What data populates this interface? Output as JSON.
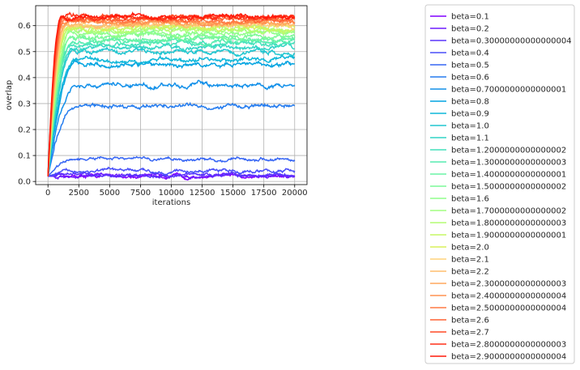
{
  "chart_data": {
    "type": "line",
    "xlabel": "iterations",
    "ylabel": "overlap",
    "xlim": [
      -1000,
      21000
    ],
    "ylim": [
      -0.012,
      0.677
    ],
    "xticks": [
      0,
      2500,
      5000,
      7500,
      10000,
      12500,
      15000,
      17500,
      20000
    ],
    "xtick_labels": [
      "0",
      "2500",
      "5000",
      "7500",
      "10000",
      "12500",
      "15000",
      "17500",
      "20000"
    ],
    "yticks": [
      0.0,
      0.1,
      0.2,
      0.3,
      0.4,
      0.5,
      0.6
    ],
    "ytick_labels": [
      "0.0",
      "0.1",
      "0.2",
      "0.3",
      "0.4",
      "0.5",
      "0.6"
    ],
    "grid": true,
    "legend_position": "right, outside plot",
    "x_range": [
      0,
      20000
    ],
    "initial_overlap": 0.02,
    "series": [
      {
        "name": "beta=0.1",
        "color": "#8000ff",
        "plateau": 0.02
      },
      {
        "name": "beta=0.2",
        "color": "#6e1bfe",
        "plateau": 0.022
      },
      {
        "name": "beta=0.30000000000000004",
        "color": "#5a35fc",
        "plateau": 0.025
      },
      {
        "name": "beta=0.4",
        "color": "#484ef9",
        "plateau": 0.04
      },
      {
        "name": "beta=0.5",
        "color": "#3766f4",
        "plateau": 0.085
      },
      {
        "name": "beta=0.6",
        "color": "#257cef",
        "plateau": 0.29
      },
      {
        "name": "beta=0.7000000000000001",
        "color": "#1390e9",
        "plateau": 0.37
      },
      {
        "name": "beta=0.8",
        "color": "#02a4e1",
        "plateau": 0.45
      },
      {
        "name": "beta=0.9",
        "color": "#0fb7d9",
        "plateau": 0.47
      },
      {
        "name": "beta=1.0",
        "color": "#20c6d0",
        "plateau": 0.5
      },
      {
        "name": "beta=1.1",
        "color": "#32d4c6",
        "plateau": 0.515
      },
      {
        "name": "beta=1.2000000000000002",
        "color": "#44e1bc",
        "plateau": 0.53
      },
      {
        "name": "beta=1.3000000000000003",
        "color": "#56ecb0",
        "plateau": 0.54
      },
      {
        "name": "beta=1.4000000000000001",
        "color": "#6af3a5",
        "plateau": 0.55
      },
      {
        "name": "beta=1.5000000000000002",
        "color": "#7cf998",
        "plateau": 0.56
      },
      {
        "name": "beta=1.6",
        "color": "#90fe8c",
        "plateau": 0.57
      },
      {
        "name": "beta=1.7000000000000002",
        "color": "#a2fe80",
        "plateau": 0.58
      },
      {
        "name": "beta=1.8000000000000003",
        "color": "#b4fc72",
        "plateau": 0.585
      },
      {
        "name": "beta=1.9000000000000001",
        "color": "#c6f765",
        "plateau": 0.59
      },
      {
        "name": "beta=2.0",
        "color": "#d8f15a",
        "plateau": 0.595
      },
      {
        "name": "beta=2.1",
        "color": "#ffd27b",
        "plateau": 0.6
      },
      {
        "name": "beta=2.2",
        "color": "#ffbe6e",
        "plateau": 0.605
      },
      {
        "name": "beta=2.3000000000000003",
        "color": "#ffa85f",
        "plateau": 0.61
      },
      {
        "name": "beta=2.4000000000000004",
        "color": "#ff9251",
        "plateau": 0.615
      },
      {
        "name": "beta=2.5000000000000004",
        "color": "#ff7a43",
        "plateau": 0.62
      },
      {
        "name": "beta=2.6",
        "color": "#ff6234",
        "plateau": 0.625
      },
      {
        "name": "beta=2.7",
        "color": "#ff4a26",
        "plateau": 0.63
      },
      {
        "name": "beta=2.8000000000000003",
        "color": "#ff3018",
        "plateau": 0.633
      },
      {
        "name": "beta=2.9000000000000004",
        "color": "#ff1a0a",
        "plateau": 0.636
      }
    ]
  }
}
